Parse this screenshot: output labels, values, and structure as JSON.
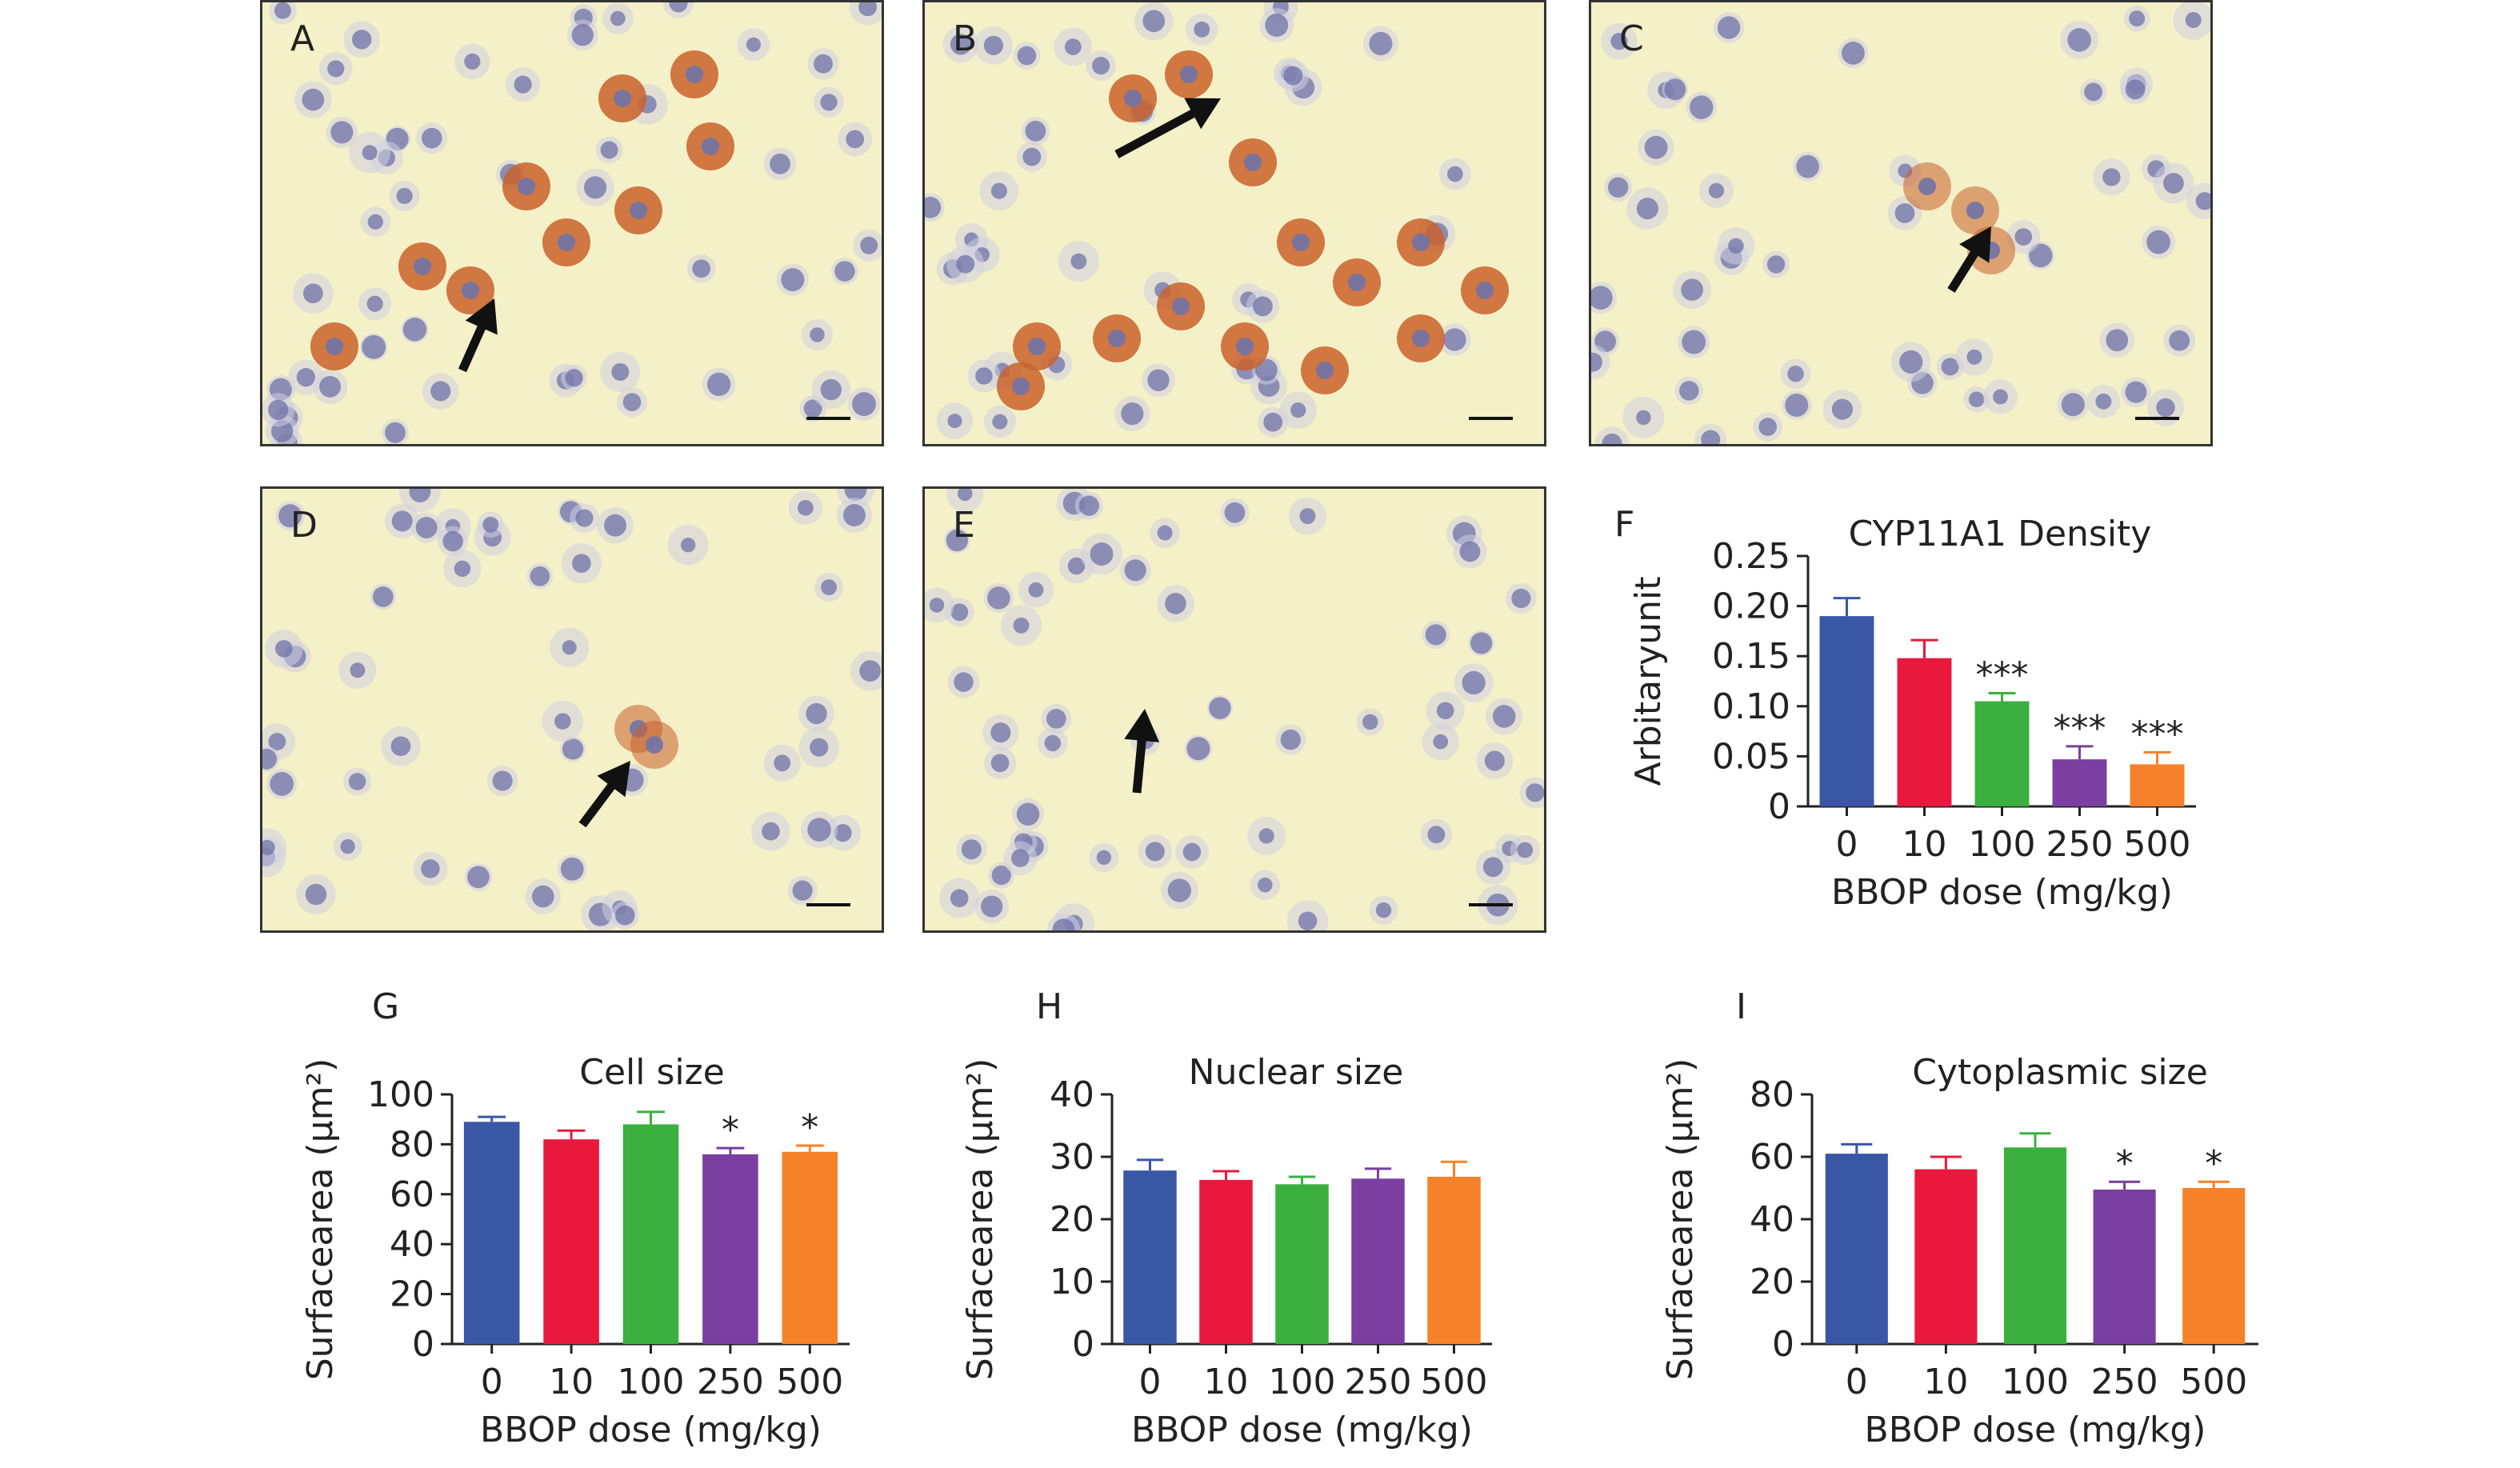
{
  "panels": {
    "micrographs": [
      {
        "label": "A",
        "stain": "strong"
      },
      {
        "label": "B",
        "stain": "strong"
      },
      {
        "label": "C",
        "stain": "weak"
      },
      {
        "label": "D",
        "stain": "weak"
      },
      {
        "label": "E",
        "stain": "none"
      }
    ],
    "chart_labels": {
      "F": "F",
      "G": "G",
      "H": "H",
      "I": "I"
    }
  },
  "colors": {
    "dose_0": "#3a57a6",
    "dose_10": "#e8193c",
    "dose_100": "#3bb03f",
    "dose_250": "#7a3fa0",
    "dose_500": "#f5822a",
    "background_tissue": "#f4f0c8",
    "nucleus": "#6f72a8",
    "stain": "#c9612a",
    "arrow": "#111111"
  },
  "chart_data": [
    {
      "id": "F",
      "type": "bar",
      "title": "CYP11A1 Density",
      "xlabel": "BBOP dose (mg/kg)",
      "ylabel": "Arbitaryunit",
      "categories": [
        "0",
        "10",
        "100",
        "250",
        "500"
      ],
      "values": [
        0.19,
        0.148,
        0.105,
        0.047,
        0.042
      ],
      "errors": [
        0.018,
        0.018,
        0.008,
        0.013,
        0.012
      ],
      "significance": [
        "",
        "",
        "***",
        "***",
        "***"
      ],
      "ylim": [
        0,
        0.25
      ],
      "yticks": [
        "0",
        "0.05",
        "0.10",
        "0.15",
        "0.20",
        "0.25"
      ],
      "ytick_values": [
        0,
        0.05,
        0.1,
        0.15,
        0.2,
        0.25
      ]
    },
    {
      "id": "G",
      "type": "bar",
      "title": "Cell size",
      "xlabel": "BBOP dose (mg/kg)",
      "ylabel": "Surfacearea (μm²)",
      "categories": [
        "0",
        "10",
        "100",
        "250",
        "500"
      ],
      "values": [
        89,
        82,
        88,
        76,
        77
      ],
      "errors": [
        2,
        3.5,
        5,
        2.5,
        2.5
      ],
      "significance": [
        "",
        "",
        "",
        "*",
        "*"
      ],
      "ylim": [
        0,
        100
      ],
      "yticks": [
        "0",
        "20",
        "40",
        "60",
        "80",
        "100"
      ],
      "ytick_values": [
        0,
        20,
        40,
        60,
        80,
        100
      ]
    },
    {
      "id": "H",
      "type": "bar",
      "title": "Nuclear size",
      "xlabel": "BBOP dose (mg/kg)",
      "ylabel": "Surfacearea (μm²)",
      "categories": [
        "0",
        "10",
        "100",
        "250",
        "500"
      ],
      "values": [
        27.8,
        26.3,
        25.6,
        26.5,
        26.8
      ],
      "errors": [
        1.7,
        1.4,
        1.2,
        1.6,
        2.4
      ],
      "significance": [
        "",
        "",
        "",
        "",
        ""
      ],
      "ylim": [
        0,
        40
      ],
      "yticks": [
        "0",
        "10",
        "20",
        "30",
        "40"
      ],
      "ytick_values": [
        0,
        10,
        20,
        30,
        40
      ]
    },
    {
      "id": "I",
      "type": "bar",
      "title": "Cytoplasmic size",
      "xlabel": "BBOP dose (mg/kg)",
      "ylabel": "Surfacearea (μm²)",
      "categories": [
        "0",
        "10",
        "100",
        "250",
        "500"
      ],
      "values": [
        61,
        56,
        63,
        49.5,
        50
      ],
      "errors": [
        3,
        4,
        4.5,
        2.5,
        2
      ],
      "significance": [
        "",
        "",
        "",
        "*",
        "*"
      ],
      "ylim": [
        0,
        80
      ],
      "yticks": [
        "0",
        "20",
        "40",
        "60",
        "80"
      ],
      "ytick_values": [
        0,
        20,
        40,
        60,
        80
      ]
    }
  ]
}
